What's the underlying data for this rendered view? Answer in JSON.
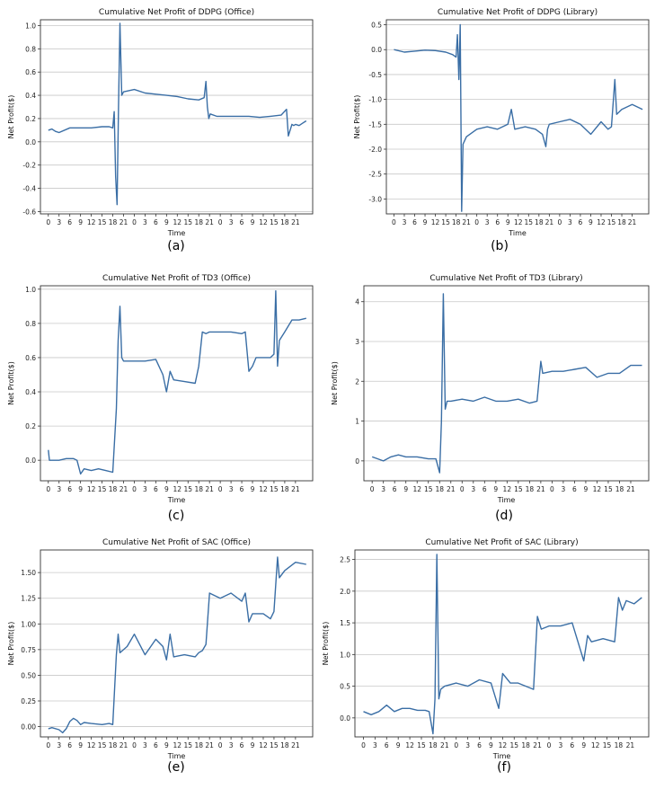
{
  "chart_data": [
    {
      "type": "line",
      "caption": "(a)",
      "title": "Cumulative Net Profit of DDPG (Office)",
      "xlabel": "Time",
      "ylabel": "Net Profit($)",
      "x_tick_labels": [
        "0",
        "3",
        "6",
        "9",
        "12",
        "15",
        "18",
        "21",
        "0",
        "3",
        "6",
        "9",
        "12",
        "15",
        "18",
        "21",
        "0",
        "3",
        "6",
        "9",
        "12",
        "15",
        "18",
        "21"
      ],
      "y_ticks": [
        -0.6,
        -0.4,
        -0.2,
        0.0,
        0.2,
        0.4,
        0.6,
        0.8,
        1.0
      ],
      "y_tick_labels": [
        "-0.6",
        "-0.4",
        "-0.2",
        "0.0",
        "0.2",
        "0.4",
        "0.6",
        "0.8",
        "1.0"
      ],
      "ylim": [
        -0.62,
        1.05
      ],
      "grid": true,
      "color": "#3a6ea5",
      "series": [
        {
          "x": [
            0,
            1,
            2,
            3,
            6,
            9,
            12,
            15,
            17,
            18,
            18.4,
            18.8,
            19.2,
            19.6,
            20,
            20.5,
            21,
            24,
            27,
            30,
            33,
            36,
            39,
            42,
            43.5,
            44,
            44.4,
            44.8,
            45.2,
            47,
            50,
            53,
            56,
            59,
            62,
            65,
            66.5,
            67,
            67.5,
            68,
            68.5,
            69,
            70,
            71,
            72
          ],
          "y": [
            0.1,
            0.11,
            0.09,
            0.08,
            0.12,
            0.12,
            0.12,
            0.13,
            0.13,
            0.12,
            0.26,
            -0.3,
            -0.54,
            0.3,
            1.02,
            0.4,
            0.43,
            0.45,
            0.42,
            0.41,
            0.4,
            0.39,
            0.37,
            0.36,
            0.38,
            0.52,
            0.3,
            0.2,
            0.24,
            0.22,
            0.22,
            0.22,
            0.22,
            0.21,
            0.22,
            0.23,
            0.28,
            0.05,
            0.1,
            0.15,
            0.14,
            0.15,
            0.14,
            0.16,
            0.18
          ]
        }
      ]
    },
    {
      "type": "line",
      "caption": "(b)",
      "title": "Cumulative Net Profit of DDPG (Library)",
      "xlabel": "Time",
      "ylabel": "Net Profit($)",
      "x_tick_labels": [
        "0",
        "3",
        "6",
        "9",
        "12",
        "15",
        "18",
        "21",
        "0",
        "3",
        "6",
        "9",
        "12",
        "15",
        "18",
        "21",
        "0",
        "3",
        "6",
        "9",
        "12",
        "15",
        "18",
        "21"
      ],
      "y_ticks": [
        -3.0,
        -2.5,
        -2.0,
        -1.5,
        -1.0,
        -0.5,
        0.0,
        0.5
      ],
      "y_tick_labels": [
        "-3.0",
        "-2.5",
        "-2.0",
        "-1.5",
        "-1.0",
        "-0.5",
        "0.0",
        "0.5"
      ],
      "ylim": [
        -3.3,
        0.6
      ],
      "grid": true,
      "color": "#3a6ea5",
      "series": [
        {
          "x": [
            0,
            3,
            6,
            9,
            12,
            15,
            17,
            18,
            18.4,
            18.8,
            19.2,
            19.6,
            20,
            21,
            24,
            27,
            30,
            33,
            34,
            35,
            38,
            41,
            43,
            44,
            44.5,
            45,
            48,
            51,
            54,
            57,
            60,
            62,
            63,
            64,
            64.5,
            66,
            69,
            72
          ],
          "y": [
            0.0,
            -0.05,
            -0.03,
            -0.01,
            -0.02,
            -0.05,
            -0.1,
            -0.15,
            0.3,
            -0.6,
            0.5,
            -3.25,
            -1.9,
            -1.75,
            -1.6,
            -1.55,
            -1.6,
            -1.5,
            -1.2,
            -1.6,
            -1.55,
            -1.6,
            -1.7,
            -1.95,
            -1.6,
            -1.5,
            -1.45,
            -1.4,
            -1.5,
            -1.7,
            -1.45,
            -1.6,
            -1.55,
            -0.6,
            -1.3,
            -1.2,
            -1.1,
            -1.2
          ]
        }
      ]
    },
    {
      "type": "line",
      "caption": "(c)",
      "title": "Cumulative Net Profit of TD3 (Office)",
      "xlabel": "Time",
      "ylabel": "Net Profit($)",
      "x_tick_labels": [
        "0",
        "3",
        "6",
        "9",
        "12",
        "15",
        "18",
        "21",
        "0",
        "3",
        "6",
        "9",
        "12",
        "15",
        "18",
        "21",
        "0",
        "3",
        "6",
        "9",
        "12",
        "15",
        "18",
        "21"
      ],
      "y_ticks": [
        0.0,
        0.2,
        0.4,
        0.6,
        0.8,
        1.0
      ],
      "y_tick_labels": [
        "0.0",
        "0.2",
        "0.4",
        "0.6",
        "0.8",
        "1.0"
      ],
      "ylim": [
        -0.12,
        1.02
      ],
      "grid": true,
      "color": "#3a6ea5",
      "series": [
        {
          "x": [
            0,
            0.3,
            1,
            3,
            5,
            7,
            8,
            9,
            10,
            12,
            14,
            16,
            18,
            19,
            19.5,
            20,
            20.5,
            21,
            22,
            24,
            27,
            30,
            32,
            33,
            34,
            35,
            38,
            41,
            42,
            43,
            44,
            45,
            48,
            51,
            54,
            55,
            56,
            57,
            58,
            60,
            62,
            63,
            63.5,
            64,
            64.5,
            66,
            68,
            70,
            72
          ],
          "y": [
            0.06,
            0.0,
            0.0,
            0.0,
            0.01,
            0.01,
            0.0,
            -0.08,
            -0.05,
            -0.06,
            -0.05,
            -0.06,
            -0.07,
            0.3,
            0.7,
            0.9,
            0.6,
            0.58,
            0.58,
            0.58,
            0.58,
            0.59,
            0.5,
            0.4,
            0.52,
            0.47,
            0.46,
            0.45,
            0.55,
            0.75,
            0.74,
            0.75,
            0.75,
            0.75,
            0.74,
            0.75,
            0.52,
            0.55,
            0.6,
            0.6,
            0.6,
            0.62,
            0.99,
            0.55,
            0.7,
            0.75,
            0.82,
            0.82,
            0.83
          ]
        }
      ]
    },
    {
      "type": "line",
      "caption": "(d)",
      "title": "Cumulative Net Profit of TD3 (Library)",
      "xlabel": "Time",
      "ylabel": "Net Profit($)",
      "x_tick_labels": [
        "0",
        "3",
        "6",
        "9",
        "12",
        "15",
        "18",
        "21",
        "0",
        "3",
        "6",
        "9",
        "12",
        "15",
        "18",
        "21",
        "0",
        "3",
        "6",
        "9",
        "12",
        "15",
        "18",
        "21"
      ],
      "y_ticks": [
        0,
        1,
        2,
        3,
        4
      ],
      "y_tick_labels": [
        "0",
        "1",
        "2",
        "3",
        "4"
      ],
      "ylim": [
        -0.5,
        4.4
      ],
      "grid": true,
      "color": "#3a6ea5",
      "series": [
        {
          "x": [
            0,
            3,
            5,
            7,
            9,
            12,
            15,
            17,
            18,
            18.5,
            19,
            19.5,
            20,
            21,
            24,
            27,
            30,
            33,
            36,
            39,
            42,
            44,
            45,
            45.5,
            48,
            51,
            54,
            57,
            60,
            63,
            66,
            69,
            72
          ],
          "y": [
            0.1,
            0.0,
            0.1,
            0.15,
            0.1,
            0.1,
            0.05,
            0.05,
            -0.3,
            1.0,
            4.2,
            1.3,
            1.5,
            1.5,
            1.55,
            1.5,
            1.6,
            1.5,
            1.5,
            1.55,
            1.45,
            1.5,
            2.5,
            2.2,
            2.25,
            2.25,
            2.3,
            2.35,
            2.1,
            2.2,
            2.2,
            2.4,
            2.4
          ]
        }
      ]
    },
    {
      "type": "line",
      "caption": "(e)",
      "title": "Cumulative Net Profit of SAC (Office)",
      "xlabel": "Time",
      "ylabel": "Net Profit($)",
      "x_tick_labels": [
        "0",
        "3",
        "6",
        "9",
        "12",
        "15",
        "18",
        "21",
        "0",
        "3",
        "6",
        "9",
        "12",
        "15",
        "18",
        "21",
        "0",
        "3",
        "6",
        "9",
        "12",
        "15",
        "18",
        "21"
      ],
      "y_ticks": [
        0.0,
        0.25,
        0.5,
        0.75,
        1.0,
        1.25,
        1.5
      ],
      "y_tick_labels": [
        "0.00",
        "0.25",
        "0.50",
        "0.75",
        "1.00",
        "1.25",
        "1.50"
      ],
      "ylim": [
        -0.1,
        1.72
      ],
      "grid": true,
      "color": "#3a6ea5",
      "series": [
        {
          "x": [
            0,
            1,
            3,
            4,
            5,
            6,
            7,
            8,
            9,
            10,
            12,
            15,
            17,
            18,
            19,
            19.5,
            20,
            21,
            22,
            24,
            27,
            30,
            32,
            33,
            34,
            35,
            38,
            41,
            42,
            43,
            44,
            45,
            48,
            51,
            54,
            55,
            56,
            57,
            60,
            62,
            63,
            64,
            64.5,
            66,
            69,
            72
          ],
          "y": [
            -0.02,
            -0.01,
            -0.03,
            -0.06,
            -0.02,
            0.05,
            0.08,
            0.06,
            0.02,
            0.04,
            0.03,
            0.02,
            0.03,
            0.02,
            0.7,
            0.9,
            0.72,
            0.75,
            0.78,
            0.9,
            0.7,
            0.85,
            0.78,
            0.65,
            0.9,
            0.68,
            0.7,
            0.68,
            0.72,
            0.74,
            0.8,
            1.3,
            1.25,
            1.3,
            1.22,
            1.3,
            1.02,
            1.1,
            1.1,
            1.05,
            1.12,
            1.65,
            1.45,
            1.52,
            1.6,
            1.58
          ]
        }
      ]
    },
    {
      "type": "line",
      "caption": "(f)",
      "title": "Cumulative Net Profit of SAC (Library)",
      "xlabel": "Time",
      "ylabel": "Net Profit($)",
      "x_tick_labels": [
        "0",
        "3",
        "6",
        "9",
        "12",
        "15",
        "18",
        "21",
        "0",
        "3",
        "6",
        "9",
        "12",
        "15",
        "18",
        "21",
        "0",
        "3",
        "6",
        "9",
        "12",
        "15",
        "18",
        "21"
      ],
      "y_ticks": [
        0.0,
        0.5,
        1.0,
        1.5,
        2.0,
        2.5
      ],
      "y_tick_labels": [
        "0.0",
        "0.5",
        "1.0",
        "1.5",
        "2.0",
        "2.5"
      ],
      "ylim": [
        -0.3,
        2.65
      ],
      "grid": true,
      "color": "#3a6ea5",
      "series": [
        {
          "x": [
            0,
            2,
            4,
            6,
            8,
            10,
            12,
            14,
            16,
            17,
            18,
            18.5,
            19,
            19.5,
            20,
            21,
            24,
            27,
            30,
            33,
            35,
            36,
            38,
            40,
            42,
            44,
            45,
            46,
            48,
            51,
            54,
            57,
            58,
            59,
            62,
            65,
            66,
            67,
            68,
            70,
            72
          ],
          "y": [
            0.1,
            0.05,
            0.1,
            0.2,
            0.1,
            0.15,
            0.15,
            0.12,
            0.12,
            0.1,
            -0.25,
            0.3,
            2.58,
            0.3,
            0.45,
            0.5,
            0.55,
            0.5,
            0.6,
            0.55,
            0.15,
            0.7,
            0.55,
            0.55,
            0.5,
            0.45,
            1.6,
            1.4,
            1.45,
            1.45,
            1.5,
            0.9,
            1.3,
            1.2,
            1.25,
            1.2,
            1.9,
            1.7,
            1.85,
            1.8,
            1.9
          ]
        }
      ]
    }
  ]
}
